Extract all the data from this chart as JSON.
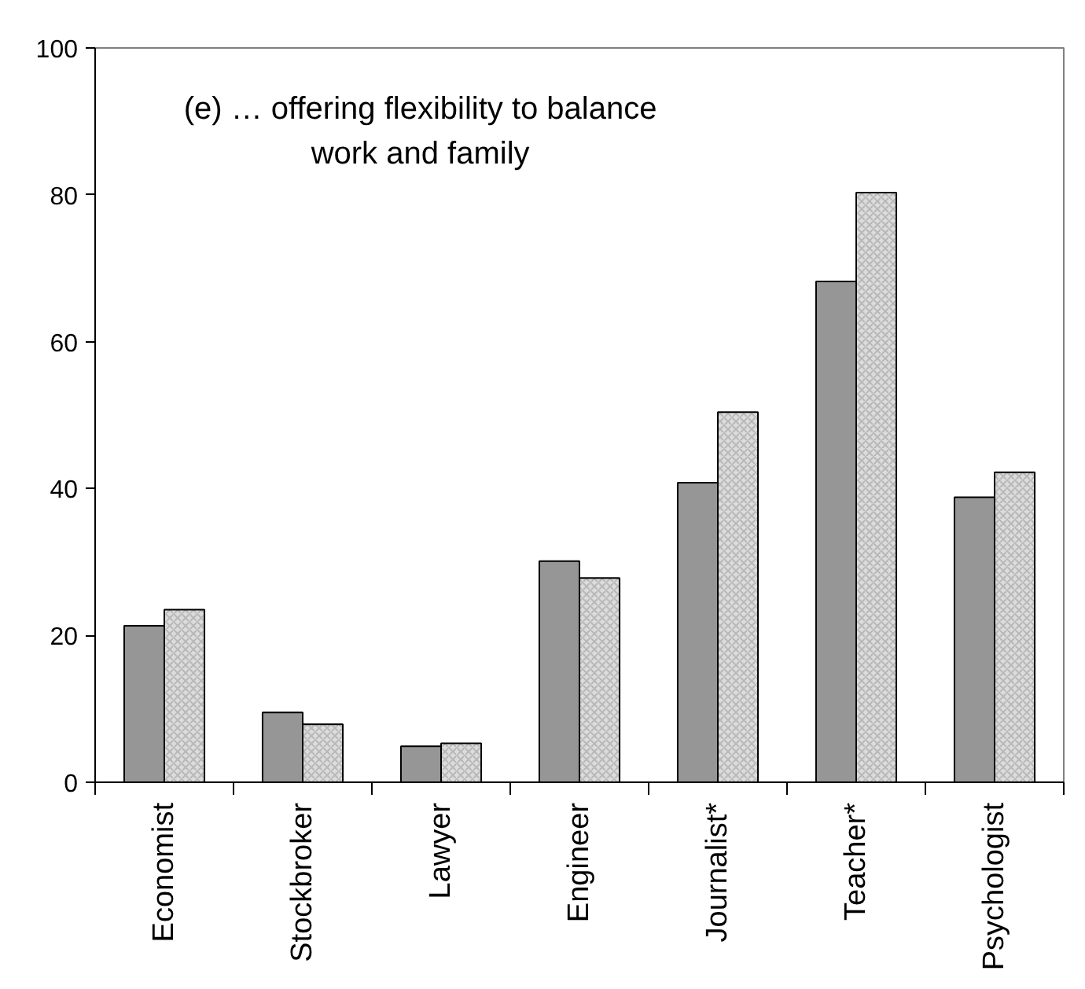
{
  "chart_data": {
    "type": "bar",
    "title": "(e) … offering flexibility to balance\nwork and family",
    "categories": [
      "Economist",
      "Stockbroker",
      "Lawyer",
      "Engineer",
      "Journalist*",
      "Teacher*",
      "Psychologist"
    ],
    "series": [
      {
        "color": "#969696",
        "values": [
          21.3,
          9.5,
          4.9,
          30.1,
          40.8,
          68.2,
          38.8
        ]
      },
      {
        "color": "#dcdcdc",
        "values": [
          23.5,
          7.9,
          5.3,
          27.8,
          50.4,
          80.3,
          42.2
        ]
      }
    ],
    "ylim": [
      0,
      100
    ],
    "yticks": [
      0,
      20,
      40,
      60,
      80,
      100
    ],
    "grid": false
  }
}
